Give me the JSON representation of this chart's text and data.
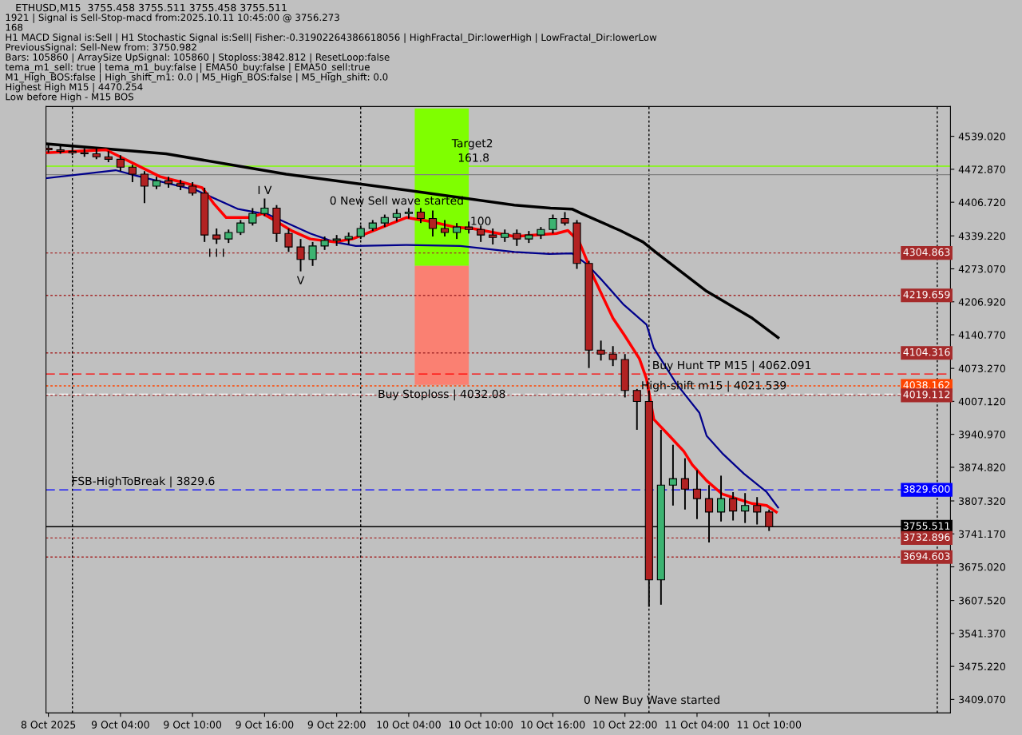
{
  "chart_data": {
    "type": "candlestick",
    "title": "ETHUSD,M15  3755.458 3755.511 3755.458 3755.511",
    "x": [
      "2025-10-08T22:00",
      "2025-10-08T23:00",
      "2025-10-09T00:00",
      "2025-10-09T01:00",
      "2025-10-09T02:00",
      "2025-10-09T03:00",
      "2025-10-09T04:00",
      "2025-10-09T05:00",
      "2025-10-09T06:00",
      "2025-10-09T07:00",
      "2025-10-09T08:00",
      "2025-10-09T09:00",
      "2025-10-09T10:00",
      "2025-10-09T11:00",
      "2025-10-09T12:00",
      "2025-10-09T13:00",
      "2025-10-09T14:00",
      "2025-10-09T15:00",
      "2025-10-09T16:00",
      "2025-10-09T17:00",
      "2025-10-09T18:00",
      "2025-10-09T19:00",
      "2025-10-09T20:00",
      "2025-10-09T21:00",
      "2025-10-09T22:00",
      "2025-10-09T23:00",
      "2025-10-10T00:00",
      "2025-10-10T01:00",
      "2025-10-10T02:00",
      "2025-10-10T03:00",
      "2025-10-10T04:00",
      "2025-10-10T05:00",
      "2025-10-10T06:00",
      "2025-10-10T07:00",
      "2025-10-10T08:00",
      "2025-10-10T09:00",
      "2025-10-10T10:00",
      "2025-10-10T11:00",
      "2025-10-10T12:00",
      "2025-10-10T13:00",
      "2025-10-10T14:00",
      "2025-10-10T15:00",
      "2025-10-10T16:00",
      "2025-10-10T17:00",
      "2025-10-10T18:00",
      "2025-10-10T19:00",
      "2025-10-10T20:00",
      "2025-10-10T21:00",
      "2025-10-10T22:00",
      "2025-10-10T23:00",
      "2025-10-11T00:00",
      "2025-10-11T01:00",
      "2025-10-11T02:00",
      "2025-10-11T03:00",
      "2025-10-11T04:00",
      "2025-10-11T05:00",
      "2025-10-11T06:00",
      "2025-10-11T07:00",
      "2025-10-11T08:00",
      "2025-10-11T09:00",
      "2025-10-11T10:00"
    ],
    "ohlc": [
      [
        4515,
        4524,
        4506,
        4512
      ],
      [
        4512,
        4520,
        4504,
        4509
      ],
      [
        4509,
        4517,
        4501,
        4506
      ],
      [
        4506,
        4515,
        4498,
        4504
      ],
      [
        4504,
        4515,
        4493,
        4498
      ],
      [
        4498,
        4509,
        4487,
        4493
      ],
      [
        4493,
        4501,
        4469,
        4477
      ],
      [
        4477,
        4482,
        4447,
        4463
      ],
      [
        4463,
        4469,
        4405,
        4439
      ],
      [
        4439,
        4458,
        4433,
        4450
      ],
      [
        4450,
        4458,
        4436,
        4444
      ],
      [
        4444,
        4452,
        4431,
        4439
      ],
      [
        4439,
        4447,
        4420,
        4425
      ],
      [
        4425,
        4436,
        4327,
        4341
      ],
      [
        4341,
        4354,
        4323,
        4333
      ],
      [
        4333,
        4352,
        4325,
        4346
      ],
      [
        4346,
        4371,
        4341,
        4365
      ],
      [
        4365,
        4395,
        4360,
        4384
      ],
      [
        4384,
        4414,
        4379,
        4395
      ],
      [
        4395,
        4401,
        4327,
        4344
      ],
      [
        4344,
        4354,
        4307,
        4317
      ],
      [
        4317,
        4333,
        4268,
        4292
      ],
      [
        4292,
        4327,
        4279,
        4319
      ],
      [
        4319,
        4338,
        4311,
        4330
      ],
      [
        4330,
        4341,
        4319,
        4333
      ],
      [
        4333,
        4346,
        4322,
        4338
      ],
      [
        4338,
        4360,
        4333,
        4354
      ],
      [
        4354,
        4371,
        4349,
        4365
      ],
      [
        4365,
        4382,
        4357,
        4376
      ],
      [
        4376,
        4393,
        4368,
        4384
      ],
      [
        4384,
        4395,
        4374,
        4387
      ],
      [
        4387,
        4395,
        4365,
        4374
      ],
      [
        4374,
        4390,
        4338,
        4354
      ],
      [
        4354,
        4371,
        4338,
        4346
      ],
      [
        4346,
        4365,
        4333,
        4357
      ],
      [
        4357,
        4368,
        4344,
        4352
      ],
      [
        4352,
        4360,
        4327,
        4341
      ],
      [
        4341,
        4354,
        4322,
        4336
      ],
      [
        4336,
        4352,
        4327,
        4344
      ],
      [
        4344,
        4352,
        4319,
        4333
      ],
      [
        4333,
        4349,
        4325,
        4341
      ],
      [
        4341,
        4357,
        4333,
        4352
      ],
      [
        4352,
        4382,
        4344,
        4374
      ],
      [
        4374,
        4387,
        4360,
        4365
      ],
      [
        4365,
        4371,
        4273,
        4284
      ],
      [
        4284,
        4289,
        4074,
        4110
      ],
      [
        4110,
        4129,
        4089,
        4102
      ],
      [
        4102,
        4118,
        4078,
        4091
      ],
      [
        4091,
        4102,
        4015,
        4029
      ],
      [
        4029,
        4032,
        3950,
        4007
      ],
      [
        4007,
        4029,
        3595,
        3649
      ],
      [
        3649,
        3950,
        3599,
        3839
      ],
      [
        3839,
        3920,
        3798,
        3852
      ],
      [
        3852,
        3893,
        3790,
        3831
      ],
      [
        3831,
        3869,
        3771,
        3812
      ],
      [
        3812,
        3839,
        3724,
        3785
      ],
      [
        3785,
        3858,
        3766,
        3812
      ],
      [
        3812,
        3825,
        3768,
        3787
      ],
      [
        3787,
        3823,
        3763,
        3798
      ],
      [
        3798,
        3815,
        3760,
        3785
      ],
      [
        3785,
        3790,
        3747,
        3755.5
      ]
    ],
    "series": [
      {
        "type": "line",
        "color": "#000000",
        "x": [
          "2025-10-08T21:49",
          "2025-10-09T07:48",
          "2025-10-09T17:48",
          "2025-10-10T03:48",
          "2025-10-10T12:48",
          "2025-10-10T15:48",
          "2025-10-10T17:36",
          "2025-10-10T18:24",
          "2025-10-10T21:36",
          "2025-10-10T23:30",
          "2025-10-11T00:45",
          "2025-10-11T04:48",
          "2025-10-11T08:36",
          "2025-10-11T10:45"
        ],
        "values": [
          4524,
          4504,
          4463,
          4431,
          4401,
          4395,
          4393,
          4384,
          4350,
          4327,
          4303,
          4228,
          4174,
          4135
        ]
      },
      {
        "type": "line",
        "color": "#00008b",
        "x": [
          "2025-10-08T21:49",
          "2025-10-09T03:36",
          "2025-10-09T05:18",
          "2025-10-09T10:18",
          "2025-10-09T13:48",
          "2025-10-09T16:18",
          "2025-10-09T19:48",
          "2025-10-09T21:48",
          "2025-10-09T23:36",
          "2025-10-10T03:48",
          "2025-10-10T08:18",
          "2025-10-10T12:48",
          "2025-10-10T15:42",
          "2025-10-10T17:36",
          "2025-10-10T18:48",
          "2025-10-10T20:06",
          "2025-10-10T21:54",
          "2025-10-10T23:48",
          "2025-10-11T00:24",
          "2025-10-11T02:18",
          "2025-10-11T04:12",
          "2025-10-11T04:48",
          "2025-10-11T06:06",
          "2025-10-11T07:54",
          "2025-10-11T09:48",
          "2025-10-11T10:45"
        ],
        "values": [
          4455,
          4471,
          4460,
          4431,
          4393,
          4382,
          4344,
          4327,
          4319,
          4321,
          4319,
          4307,
          4303,
          4304,
          4283,
          4250,
          4201,
          4161,
          4114,
          4042,
          3984,
          3938,
          3903,
          3862,
          3825,
          3794
        ]
      },
      {
        "type": "line",
        "color": "#ff0000",
        "x": [
          "2025-10-08T21:49",
          "2025-10-09T02:48",
          "2025-10-09T07:18",
          "2025-10-09T09:06",
          "2025-10-09T10:48",
          "2025-10-09T11:48",
          "2025-10-09T12:48",
          "2025-10-09T14:48",
          "2025-10-09T15:48",
          "2025-10-09T16:48",
          "2025-10-09T18:18",
          "2025-10-09T19:48",
          "2025-10-09T21:48",
          "2025-10-09T23:18",
          "2025-10-10T01:18",
          "2025-10-10T03:48",
          "2025-10-10T05:48",
          "2025-10-10T07:48",
          "2025-10-10T09:18",
          "2025-10-10T12:48",
          "2025-10-10T16:18",
          "2025-10-10T17:15",
          "2025-10-10T18:12",
          "2025-10-10T19:24",
          "2025-10-10T21:00",
          "2025-10-10T21:54",
          "2025-10-10T23:12",
          "2025-10-10T23:48",
          "2025-10-11T00:24",
          "2025-10-11T01:42",
          "2025-10-11T02:54",
          "2025-10-11T03:36",
          "2025-10-11T04:48",
          "2025-10-11T06:06",
          "2025-10-11T07:18",
          "2025-10-11T08:36",
          "2025-10-11T09:48",
          "2025-10-11T10:36"
        ],
        "values": [
          4506,
          4512,
          4458,
          4447,
          4436,
          4403,
          4376,
          4376,
          4384,
          4371,
          4349,
          4333,
          4327,
          4333,
          4352,
          4376,
          4368,
          4357,
          4354,
          4338,
          4344,
          4350,
          4327,
          4256,
          4174,
          4142,
          4093,
          4052,
          3971,
          3938,
          3907,
          3880,
          3848,
          3821,
          3812,
          3802,
          3798,
          3785
        ]
      },
      {
        "type": "bar",
        "color": "#7fff00",
        "x": [
          "2025-10-10T06:45"
        ],
        "base": [
          4279
        ],
        "values": [
          316
        ]
      },
      {
        "type": "bar",
        "color": "#fa8072",
        "x": [
          "2025-10-10T06:45"
        ],
        "base": [
          4040
        ],
        "values": [
          239
        ]
      }
    ],
    "xlim": [
      "2025-10-08T21:48",
      "2025-10-12T01:06"
    ],
    "xticks": [
      {
        "value": "2025-10-08T22:00",
        "label": "8 Oct 2025"
      },
      {
        "value": "2025-10-09T04:00",
        "label": "9 Oct 04:00"
      },
      {
        "value": "2025-10-09T10:00",
        "label": "9 Oct 10:00"
      },
      {
        "value": "2025-10-09T16:00",
        "label": "9 Oct 16:00"
      },
      {
        "value": "2025-10-09T22:00",
        "label": "9 Oct 22:00"
      },
      {
        "value": "2025-10-10T04:00",
        "label": "10 Oct 04:00"
      },
      {
        "value": "2025-10-10T10:00",
        "label": "10 Oct 10:00"
      },
      {
        "value": "2025-10-10T16:00",
        "label": "10 Oct 16:00"
      },
      {
        "value": "2025-10-10T22:00",
        "label": "10 Oct 22:00"
      },
      {
        "value": "2025-10-11T04:00",
        "label": "11 Oct 04:00"
      },
      {
        "value": "2025-10-11T10:00",
        "label": "11 Oct 10:00"
      }
    ],
    "ylim": [
      3381.8,
      4598.7
    ],
    "yticks": [
      {
        "value": 4539.02,
        "label": "4539.020"
      },
      {
        "value": 4472.87,
        "label": "4472.870"
      },
      {
        "value": 4406.72,
        "label": "4406.720"
      },
      {
        "value": 4339.22,
        "label": "4339.220"
      },
      {
        "value": 4273.07,
        "label": "4273.070"
      },
      {
        "value": 4206.92,
        "label": "4206.920"
      },
      {
        "value": 4140.77,
        "label": "4140.770"
      },
      {
        "value": 4073.27,
        "label": "4073.270"
      },
      {
        "value": 4007.12,
        "label": "4007.120"
      },
      {
        "value": 3940.97,
        "label": "3940.970"
      },
      {
        "value": 3874.82,
        "label": "3874.820"
      },
      {
        "value": 3807.32,
        "label": "3807.320"
      },
      {
        "value": 3741.17,
        "label": "3741.170"
      },
      {
        "value": 3675.02,
        "label": "3675.020"
      },
      {
        "value": 3607.52,
        "label": "3607.520"
      },
      {
        "value": 3541.37,
        "label": "3541.370"
      },
      {
        "value": 3475.22,
        "label": "3475.220"
      },
      {
        "value": 3409.07,
        "label": "3409.070"
      }
    ],
    "ref_lines": [
      {
        "axis": "x",
        "value": "2025-10-09T00:00",
        "color": "#000000",
        "line_style": "dotted"
      },
      {
        "axis": "x",
        "value": "2025-10-10T00:00",
        "color": "#000000",
        "line_style": "dotted"
      },
      {
        "axis": "x",
        "value": "2025-10-11T00:00",
        "color": "#000000",
        "line_style": "dotted"
      },
      {
        "axis": "x",
        "value": "2025-10-12T00:00",
        "color": "#000000",
        "line_style": "dotted"
      },
      {
        "axis": "y",
        "value": 4304.863,
        "label": "4304.863",
        "color": "#a52a2a",
        "line_style": "dotted"
      },
      {
        "axis": "y",
        "value": 4219.659,
        "label": "4219.659",
        "color": "#a52a2a",
        "line_style": "dotted"
      },
      {
        "axis": "y",
        "value": 4104.316,
        "label": "4104.316",
        "color": "#a52a2a",
        "line_style": "dotted"
      },
      {
        "axis": "y",
        "value": 4038.162,
        "label": "4038.162",
        "color": "#ff4500",
        "line_style": "dotted"
      },
      {
        "axis": "y",
        "value": 4019.112,
        "label": "4019.112",
        "color": "#a52a2a",
        "line_style": "dotted"
      },
      {
        "axis": "y",
        "value": 3829.6,
        "label": "3829.600",
        "color": "#0000ff",
        "line_style": "dashed"
      },
      {
        "axis": "y",
        "value": 3755.511,
        "label": "3755.511",
        "color": "#000000",
        "line_style": "solid"
      },
      {
        "axis": "y",
        "value": 3732.896,
        "label": "3732.896",
        "color": "#a52a2a",
        "line_style": "dotted"
      },
      {
        "axis": "y",
        "value": 3694.603,
        "label": "3694.603",
        "color": "#a52a2a",
        "line_style": "dotted"
      },
      {
        "axis": "y",
        "value": 4062.091,
        "color": "#ff0000",
        "line_style": "dashed"
      },
      {
        "axis": "y",
        "value": 4021.539,
        "color": "#ffffff",
        "line_style": "dashed"
      },
      {
        "axis": "y",
        "value": 4479,
        "color": "#7fff00",
        "line_style": "solid"
      },
      {
        "axis": "y",
        "value": 4462,
        "color": "#808080",
        "line_style": "solid"
      }
    ],
    "annotations": [
      "1921 | Signal is Sell-Stop-macd from:2025.10.11 10:45:00 @ 3756.273",
      "168",
      "H1 MACD Signal is:Sell | H1 Stochastic Signal is:Sell| Fisher:-0.31902264386618056 | HighFractal_Dir:lowerHigh | LowFractal_Dir:lowerLow",
      "PreviousSignal: Sell-New from: 3750.982",
      "Bars: 105860 | ArraySize UpSignal: 105860 | Stoploss:3842.812 | ResetLoop:false",
      "tema_m1_sell: true | tema_m1_buy:false | EMA50_buy:false | EMA50_sell:true",
      "M1_High_BOS:false | High_shift_m1: 0.0 | M5_High_BOS:false | M5_High_shift: 0.0",
      "Highest High M15 | 4470.254",
      "Low before High - M15 BOS",
      {
        "text": "I V",
        "x": "2025-10-09T16:00",
        "y": 4414
      },
      {
        "text": "I I I",
        "x": "2025-10-09T12:00",
        "y": 4323
      },
      {
        "text": "V",
        "x": "2025-10-09T19:00",
        "y": 4268
      },
      {
        "text": "0 New Sell wave started",
        "x": "2025-10-10T03:00",
        "y": 4393
      },
      {
        "text": "Target2",
        "x": "2025-10-10T09:18",
        "y": 4508
      },
      {
        "text": "161.8",
        "x": "2025-10-10T09:24",
        "y": 4479
      },
      {
        "text": "100",
        "x": "2025-10-10T10:00",
        "y": 4352
      },
      {
        "text": "Buy Stoploss | 4032.08",
        "x": "2025-10-10T06:45",
        "y": 4040
      },
      {
        "text": "Buy Hunt TP M15 | 4062.091",
        "x": "2025-10-11T06:54",
        "y": 4062.091
      },
      {
        "text": "High-shift m15 | 4021.539",
        "x": "2025-10-11T05:24",
        "y": 4021.539
      },
      {
        "text": "FSB-HighToBreak | 3829.6",
        "x": "2025-10-09T05:54",
        "y": 3829.6
      },
      {
        "text": "0 New Buy Wave started",
        "x": "2025-10-11T00:15",
        "y": 3391
      }
    ],
    "legend": false,
    "grid": false
  }
}
